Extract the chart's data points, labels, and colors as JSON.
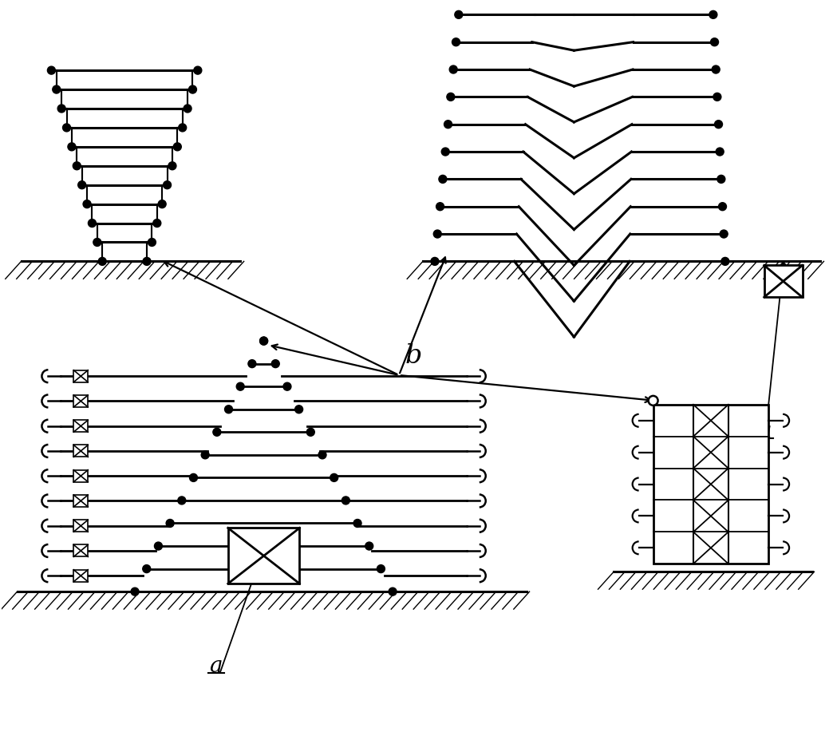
{
  "background_color": "#ffffff",
  "line_color": "#000000",
  "label_b": "b",
  "label_a": "a",
  "figsize": [
    10.44,
    9.17
  ],
  "dpi": 100,
  "lw_pipe": 2.0,
  "lw_ground": 2.0,
  "dot_r": 4.5
}
